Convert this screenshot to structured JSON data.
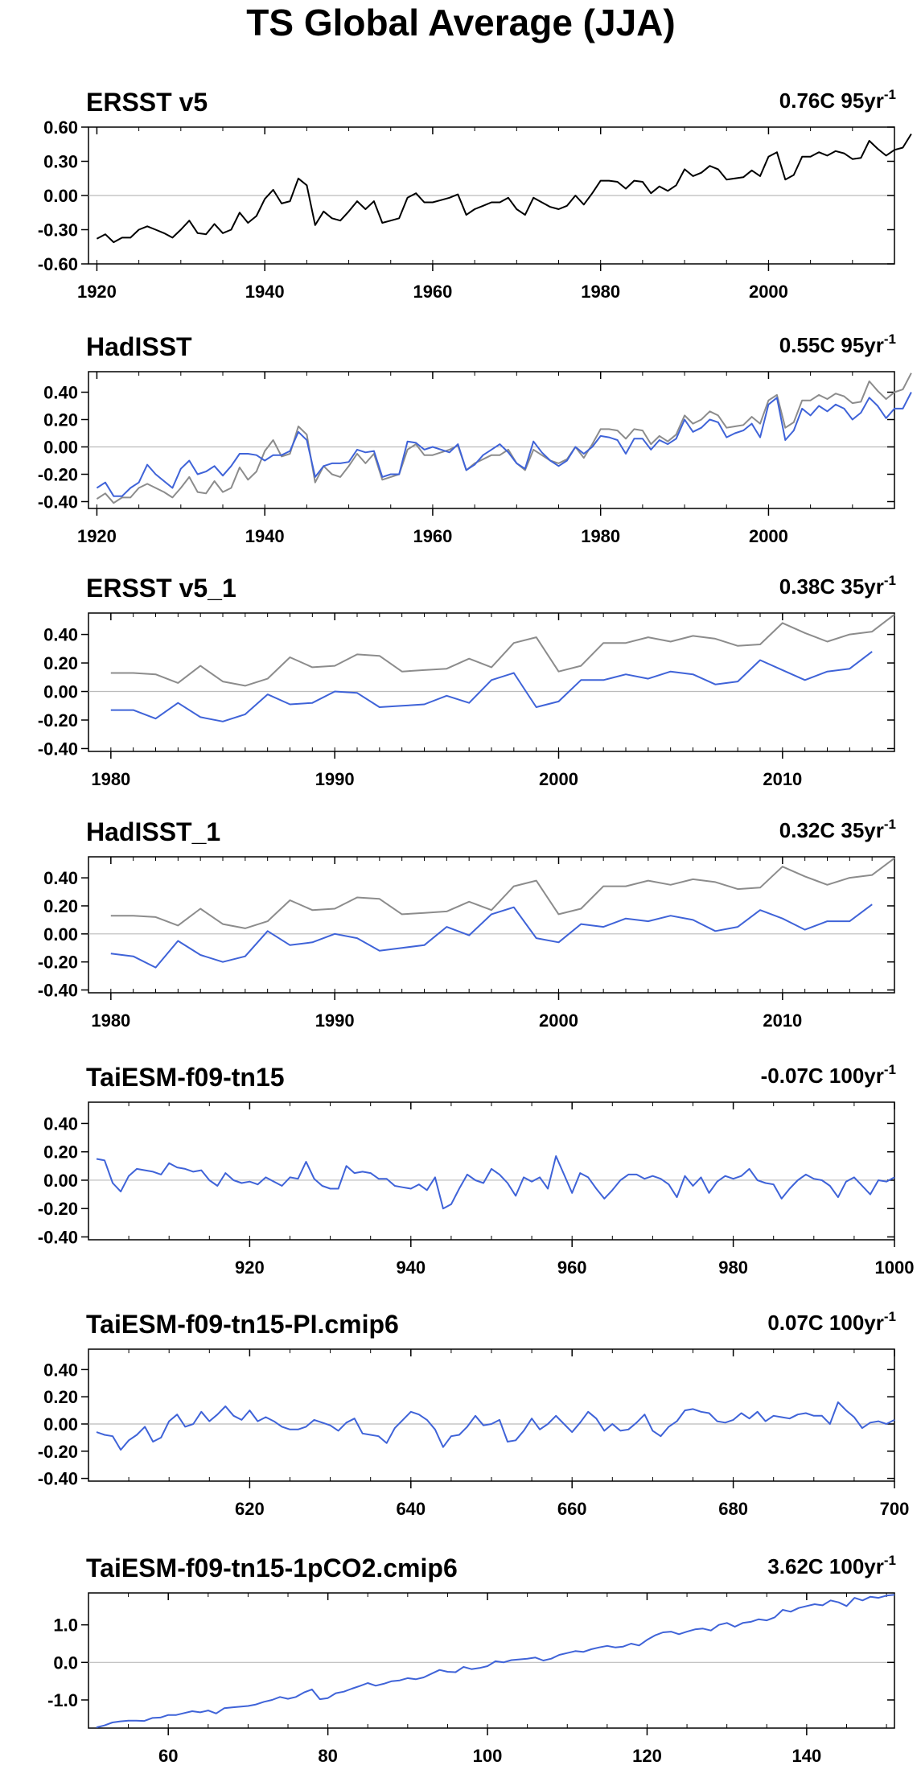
{
  "figure_title": "TS Global Average (JJA)",
  "colors": {
    "obs": "#000000",
    "ref": "#8c8c8c",
    "model": "#3f63d8",
    "zero": "#bbbbbb"
  },
  "chart_data": [
    {
      "type": "line",
      "title": "ERSST v5",
      "trend_value": "0.76C 95yr",
      "trend_sup": "-1",
      "xlim": [
        1919,
        2015
      ],
      "ylim": [
        -0.6,
        0.6
      ],
      "xticks": [
        1920,
        1940,
        1960,
        1980,
        2000
      ],
      "xtick_labels": [
        "1920",
        "1940",
        "1960",
        "1980",
        "2000"
      ],
      "yticks": [
        -0.6,
        -0.3,
        0.0,
        0.3,
        0.6
      ],
      "ytick_labels": [
        "-0.60",
        "-0.30",
        "0.00",
        "0.30",
        "0.60"
      ],
      "series": [
        {
          "color": "obs",
          "x0": 1920,
          "values": [
            -0.38,
            -0.34,
            -0.41,
            -0.37,
            -0.37,
            -0.3,
            -0.27,
            -0.3,
            -0.33,
            -0.37,
            -0.3,
            -0.22,
            -0.33,
            -0.34,
            -0.25,
            -0.33,
            -0.3,
            -0.15,
            -0.24,
            -0.18,
            -0.03,
            0.05,
            -0.07,
            -0.05,
            0.15,
            0.09,
            -0.26,
            -0.14,
            -0.2,
            -0.22,
            -0.14,
            -0.05,
            -0.12,
            -0.05,
            -0.24,
            -0.22,
            -0.2,
            -0.02,
            0.02,
            -0.06,
            -0.06,
            -0.04,
            -0.02,
            0.01,
            -0.17,
            -0.12,
            -0.09,
            -0.06,
            -0.06,
            -0.02,
            -0.12,
            -0.17,
            -0.02,
            -0.06,
            -0.1,
            -0.12,
            -0.09,
            0.0,
            -0.08,
            0.02,
            0.13,
            0.13,
            0.12,
            0.06,
            0.13,
            0.12,
            0.02,
            0.08,
            0.04,
            0.09,
            0.23,
            0.17,
            0.2,
            0.26,
            0.23,
            0.14,
            0.15,
            0.16,
            0.22,
            0.17,
            0.34,
            0.38,
            0.14,
            0.18,
            0.34,
            0.34,
            0.38,
            0.35,
            0.39,
            0.37,
            0.32,
            0.33,
            0.48,
            0.41,
            0.35,
            0.4,
            0.42,
            0.54
          ]
        }
      ]
    },
    {
      "type": "line",
      "title": "HadISST",
      "trend_value": "0.55C 95yr",
      "trend_sup": "-1",
      "xlim": [
        1919,
        2015
      ],
      "ylim": [
        -0.45,
        0.55
      ],
      "xticks": [
        1920,
        1940,
        1960,
        1980,
        2000
      ],
      "xtick_labels": [
        "1920",
        "1940",
        "1960",
        "1980",
        "2000"
      ],
      "yticks": [
        -0.4,
        -0.2,
        0.0,
        0.2,
        0.4
      ],
      "ytick_labels": [
        "-0.40",
        "-0.20",
        "0.00",
        "0.20",
        "0.40"
      ],
      "series": [
        {
          "color": "ref",
          "x0": 1920,
          "values": [
            -0.38,
            -0.34,
            -0.41,
            -0.37,
            -0.37,
            -0.3,
            -0.27,
            -0.3,
            -0.33,
            -0.37,
            -0.3,
            -0.22,
            -0.33,
            -0.34,
            -0.25,
            -0.33,
            -0.3,
            -0.15,
            -0.24,
            -0.18,
            -0.03,
            0.05,
            -0.07,
            -0.05,
            0.15,
            0.09,
            -0.26,
            -0.14,
            -0.2,
            -0.22,
            -0.14,
            -0.05,
            -0.12,
            -0.05,
            -0.24,
            -0.22,
            -0.2,
            -0.02,
            0.02,
            -0.06,
            -0.06,
            -0.04,
            -0.02,
            0.01,
            -0.17,
            -0.12,
            -0.09,
            -0.06,
            -0.06,
            -0.02,
            -0.12,
            -0.17,
            -0.02,
            -0.06,
            -0.1,
            -0.12,
            -0.09,
            0.0,
            -0.08,
            0.02,
            0.13,
            0.13,
            0.12,
            0.06,
            0.13,
            0.12,
            0.02,
            0.08,
            0.04,
            0.09,
            0.23,
            0.17,
            0.2,
            0.26,
            0.23,
            0.14,
            0.15,
            0.16,
            0.22,
            0.17,
            0.34,
            0.38,
            0.14,
            0.18,
            0.34,
            0.34,
            0.38,
            0.35,
            0.39,
            0.37,
            0.32,
            0.33,
            0.48,
            0.41,
            0.35,
            0.4,
            0.42,
            0.54
          ]
        },
        {
          "color": "model",
          "x0": 1920,
          "values": [
            -0.3,
            -0.26,
            -0.36,
            -0.36,
            -0.3,
            -0.26,
            -0.13,
            -0.2,
            -0.25,
            -0.3,
            -0.16,
            -0.1,
            -0.2,
            -0.18,
            -0.14,
            -0.21,
            -0.14,
            -0.05,
            -0.05,
            -0.06,
            -0.1,
            -0.06,
            -0.06,
            -0.03,
            0.11,
            0.05,
            -0.22,
            -0.14,
            -0.12,
            -0.12,
            -0.11,
            -0.02,
            -0.04,
            -0.03,
            -0.22,
            -0.2,
            -0.2,
            0.04,
            0.03,
            -0.02,
            0.0,
            -0.02,
            -0.04,
            0.02,
            -0.17,
            -0.13,
            -0.06,
            -0.02,
            0.02,
            -0.04,
            -0.12,
            -0.16,
            0.04,
            -0.04,
            -0.1,
            -0.14,
            -0.1,
            0.0,
            -0.05,
            0.0,
            0.08,
            0.07,
            0.05,
            -0.05,
            0.06,
            0.06,
            -0.02,
            0.05,
            0.02,
            0.06,
            0.2,
            0.11,
            0.14,
            0.2,
            0.18,
            0.07,
            0.1,
            0.12,
            0.17,
            0.07,
            0.31,
            0.36,
            0.05,
            0.12,
            0.28,
            0.23,
            0.3,
            0.26,
            0.31,
            0.28,
            0.2,
            0.25,
            0.36,
            0.3,
            0.21,
            0.28,
            0.28,
            0.4
          ]
        }
      ]
    },
    {
      "type": "line",
      "title": "ERSST v5_1",
      "trend_value": "0.38C 35yr",
      "trend_sup": "-1",
      "xlim": [
        1979,
        2015
      ],
      "ylim": [
        -0.42,
        0.55
      ],
      "xticks": [
        1980,
        1990,
        2000,
        2010
      ],
      "xtick_labels": [
        "1980",
        "1990",
        "2000",
        "2010"
      ],
      "yticks": [
        -0.4,
        -0.2,
        0.0,
        0.2,
        0.4
      ],
      "ytick_labels": [
        "-0.40",
        "-0.20",
        "0.00",
        "0.20",
        "0.40"
      ],
      "series": [
        {
          "color": "ref",
          "x0": 1980,
          "values": [
            0.13,
            0.13,
            0.12,
            0.06,
            0.18,
            0.07,
            0.04,
            0.09,
            0.24,
            0.17,
            0.18,
            0.26,
            0.25,
            0.14,
            0.15,
            0.16,
            0.23,
            0.17,
            0.34,
            0.38,
            0.14,
            0.18,
            0.34,
            0.34,
            0.38,
            0.35,
            0.39,
            0.37,
            0.32,
            0.33,
            0.48,
            0.41,
            0.35,
            0.4,
            0.42,
            0.54
          ]
        },
        {
          "color": "model",
          "x0": 1980,
          "values": [
            -0.13,
            -0.13,
            -0.19,
            -0.08,
            -0.18,
            -0.21,
            -0.16,
            -0.02,
            -0.09,
            -0.08,
            0.0,
            -0.01,
            -0.11,
            -0.1,
            -0.09,
            -0.03,
            -0.08,
            0.08,
            0.13,
            -0.11,
            -0.07,
            0.08,
            0.08,
            0.12,
            0.09,
            0.14,
            0.12,
            0.05,
            0.07,
            0.22,
            0.15,
            0.08,
            0.14,
            0.16,
            0.28
          ]
        }
      ]
    },
    {
      "type": "line",
      "title": "HadISST_1",
      "trend_value": "0.32C 35yr",
      "trend_sup": "-1",
      "xlim": [
        1979,
        2015
      ],
      "ylim": [
        -0.42,
        0.55
      ],
      "xticks": [
        1980,
        1990,
        2000,
        2010
      ],
      "xtick_labels": [
        "1980",
        "1990",
        "2000",
        "2010"
      ],
      "yticks": [
        -0.4,
        -0.2,
        0.0,
        0.2,
        0.4
      ],
      "ytick_labels": [
        "-0.40",
        "-0.20",
        "0.00",
        "0.20",
        "0.40"
      ],
      "series": [
        {
          "color": "ref",
          "x0": 1980,
          "values": [
            0.13,
            0.13,
            0.12,
            0.06,
            0.18,
            0.07,
            0.04,
            0.09,
            0.24,
            0.17,
            0.18,
            0.26,
            0.25,
            0.14,
            0.15,
            0.16,
            0.23,
            0.17,
            0.34,
            0.38,
            0.14,
            0.18,
            0.34,
            0.34,
            0.38,
            0.35,
            0.39,
            0.37,
            0.32,
            0.33,
            0.48,
            0.41,
            0.35,
            0.4,
            0.42,
            0.54
          ]
        },
        {
          "color": "model",
          "x0": 1980,
          "values": [
            -0.14,
            -0.16,
            -0.24,
            -0.05,
            -0.15,
            -0.2,
            -0.16,
            0.02,
            -0.08,
            -0.06,
            0.0,
            -0.03,
            -0.12,
            -0.1,
            -0.08,
            0.05,
            -0.01,
            0.14,
            0.19,
            -0.03,
            -0.06,
            0.07,
            0.05,
            0.11,
            0.09,
            0.13,
            0.1,
            0.02,
            0.05,
            0.17,
            0.11,
            0.03,
            0.09,
            0.09,
            0.21
          ]
        }
      ]
    },
    {
      "type": "line",
      "title": "TaiESM-f09-tn15",
      "trend_value": "-0.07C 100yr",
      "trend_sup": "-1",
      "xlim": [
        900,
        1000
      ],
      "ylim": [
        -0.42,
        0.55
      ],
      "xticks": [
        920,
        940,
        960,
        980,
        1000
      ],
      "xtick_labels": [
        "920",
        "940",
        "960",
        "980",
        "1000"
      ],
      "yticks": [
        -0.4,
        -0.2,
        0.0,
        0.2,
        0.4
      ],
      "ytick_labels": [
        "-0.40",
        "-0.20",
        "0.00",
        "0.20",
        "0.40"
      ],
      "series": [
        {
          "color": "model",
          "x0": 901,
          "values": [
            0.15,
            0.14,
            -0.02,
            -0.08,
            0.03,
            0.08,
            0.07,
            0.06,
            0.04,
            0.12,
            0.09,
            0.08,
            0.06,
            0.07,
            0.0,
            -0.04,
            0.05,
            0.0,
            -0.02,
            -0.01,
            -0.03,
            0.02,
            -0.01,
            -0.04,
            0.02,
            0.01,
            0.13,
            0.01,
            -0.04,
            -0.06,
            -0.06,
            0.1,
            0.05,
            0.06,
            0.05,
            0.01,
            0.01,
            -0.04,
            -0.05,
            -0.06,
            -0.03,
            -0.07,
            0.02,
            -0.2,
            -0.17,
            -0.06,
            0.04,
            0.0,
            -0.02,
            0.08,
            0.04,
            -0.02,
            -0.11,
            0.02,
            -0.01,
            0.02,
            -0.06,
            0.17,
            0.04,
            -0.09,
            0.05,
            0.02,
            -0.06,
            -0.13,
            -0.07,
            0.0,
            0.04,
            0.04,
            0.01,
            0.03,
            0.01,
            -0.03,
            -0.12,
            0.03,
            -0.04,
            0.02,
            -0.09,
            -0.01,
            0.03,
            0.01,
            0.03,
            0.08,
            0.0,
            -0.02,
            -0.03,
            -0.13,
            -0.06,
            0.0,
            0.04,
            0.01,
            0.0,
            -0.04,
            -0.12,
            -0.01,
            0.02,
            -0.04,
            -0.1,
            0.0,
            -0.01,
            0.02
          ]
        }
      ]
    },
    {
      "type": "line",
      "title": "TaiESM-f09-tn15-PI.cmip6",
      "trend_value": "0.07C 100yr",
      "trend_sup": "-1",
      "xlim": [
        600,
        700
      ],
      "ylim": [
        -0.42,
        0.55
      ],
      "xticks": [
        620,
        640,
        660,
        680,
        700
      ],
      "xtick_labels": [
        "620",
        "640",
        "660",
        "680",
        "700"
      ],
      "yticks": [
        -0.4,
        -0.2,
        0.0,
        0.2,
        0.4
      ],
      "ytick_labels": [
        "-0.40",
        "-0.20",
        "0.00",
        "0.20",
        "0.40"
      ],
      "series": [
        {
          "color": "model",
          "x0": 601,
          "values": [
            -0.06,
            -0.08,
            -0.09,
            -0.19,
            -0.12,
            -0.08,
            -0.02,
            -0.13,
            -0.1,
            0.02,
            0.07,
            -0.02,
            0.0,
            0.09,
            0.02,
            0.07,
            0.13,
            0.06,
            0.03,
            0.1,
            0.02,
            0.05,
            0.02,
            -0.02,
            -0.04,
            -0.04,
            -0.02,
            0.03,
            0.01,
            -0.01,
            -0.05,
            0.01,
            0.04,
            -0.07,
            -0.08,
            -0.09,
            -0.14,
            -0.03,
            0.03,
            0.09,
            0.07,
            0.03,
            -0.04,
            -0.17,
            -0.09,
            -0.08,
            -0.02,
            0.06,
            -0.01,
            0.0,
            0.03,
            -0.13,
            -0.12,
            -0.05,
            0.04,
            -0.04,
            0.0,
            0.06,
            0.0,
            -0.06,
            0.01,
            0.09,
            0.04,
            -0.05,
            0.0,
            -0.05,
            -0.04,
            0.01,
            0.07,
            -0.05,
            -0.09,
            -0.02,
            0.02,
            0.1,
            0.11,
            0.09,
            0.08,
            0.02,
            0.01,
            0.03,
            0.08,
            0.04,
            0.09,
            0.02,
            0.06,
            0.05,
            0.04,
            0.07,
            0.08,
            0.06,
            0.06,
            0.0,
            0.16,
            0.1,
            0.05,
            -0.03,
            0.01,
            0.02,
            0.0,
            0.03
          ]
        }
      ]
    },
    {
      "type": "line",
      "title": "TaiESM-f09-tn15-1pCO2.cmip6",
      "trend_value": "3.62C 100yr",
      "trend_sup": "-1",
      "xlim": [
        50,
        151
      ],
      "ylim": [
        -1.75,
        1.85
      ],
      "xticks": [
        60,
        80,
        100,
        120,
        140
      ],
      "xtick_labels": [
        "60",
        "80",
        "100",
        "120",
        "140"
      ],
      "yticks": [
        -1.0,
        0.0,
        1.0
      ],
      "ytick_labels": [
        "-1.0",
        "0.0",
        "1.0"
      ],
      "series": [
        {
          "color": "model",
          "x0": 51,
          "values": [
            -1.73,
            -1.68,
            -1.6,
            -1.57,
            -1.55,
            -1.55,
            -1.56,
            -1.48,
            -1.47,
            -1.4,
            -1.4,
            -1.35,
            -1.3,
            -1.33,
            -1.28,
            -1.36,
            -1.22,
            -1.2,
            -1.18,
            -1.16,
            -1.12,
            -1.05,
            -1.0,
            -0.92,
            -0.97,
            -0.92,
            -0.8,
            -0.72,
            -0.98,
            -0.95,
            -0.82,
            -0.78,
            -0.7,
            -0.63,
            -0.55,
            -0.62,
            -0.57,
            -0.5,
            -0.48,
            -0.42,
            -0.45,
            -0.4,
            -0.3,
            -0.2,
            -0.25,
            -0.26,
            -0.12,
            -0.18,
            -0.15,
            -0.1,
            0.03,
            0.0,
            0.06,
            0.08,
            0.1,
            0.13,
            0.05,
            0.1,
            0.2,
            0.25,
            0.3,
            0.28,
            0.35,
            0.4,
            0.44,
            0.4,
            0.42,
            0.5,
            0.45,
            0.6,
            0.72,
            0.8,
            0.82,
            0.75,
            0.82,
            0.88,
            0.9,
            0.85,
            1.0,
            1.05,
            0.95,
            1.05,
            1.08,
            1.15,
            1.12,
            1.2,
            1.4,
            1.35,
            1.45,
            1.5,
            1.55,
            1.52,
            1.65,
            1.6,
            1.5,
            1.72,
            1.65,
            1.75,
            1.72,
            1.78,
            1.8
          ]
        }
      ]
    }
  ]
}
